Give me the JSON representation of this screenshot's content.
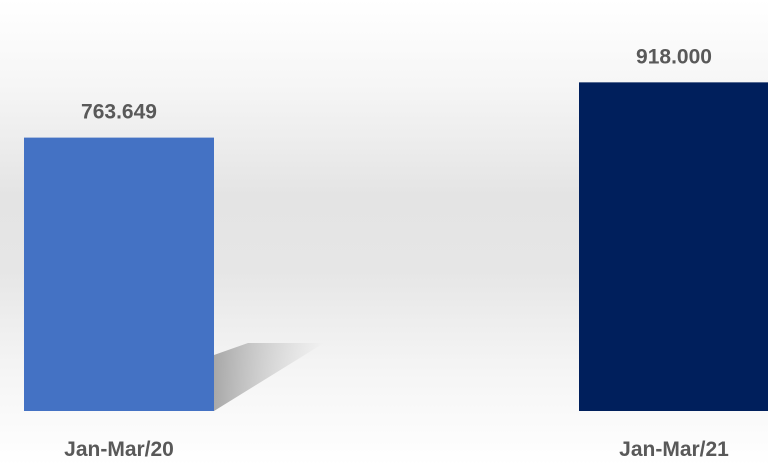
{
  "chart_data": {
    "type": "bar",
    "categories": [
      "Jan-Mar/20",
      "Jan-Mar/21"
    ],
    "values": [
      763649,
      918000
    ],
    "value_labels": [
      "763.649",
      "918.000"
    ],
    "colors": [
      "#4472C4",
      "#001F5C"
    ],
    "title": "",
    "xlabel": "",
    "ylabel": "",
    "ylim": [
      0,
      1000000
    ],
    "grid": false,
    "legend": "none"
  }
}
